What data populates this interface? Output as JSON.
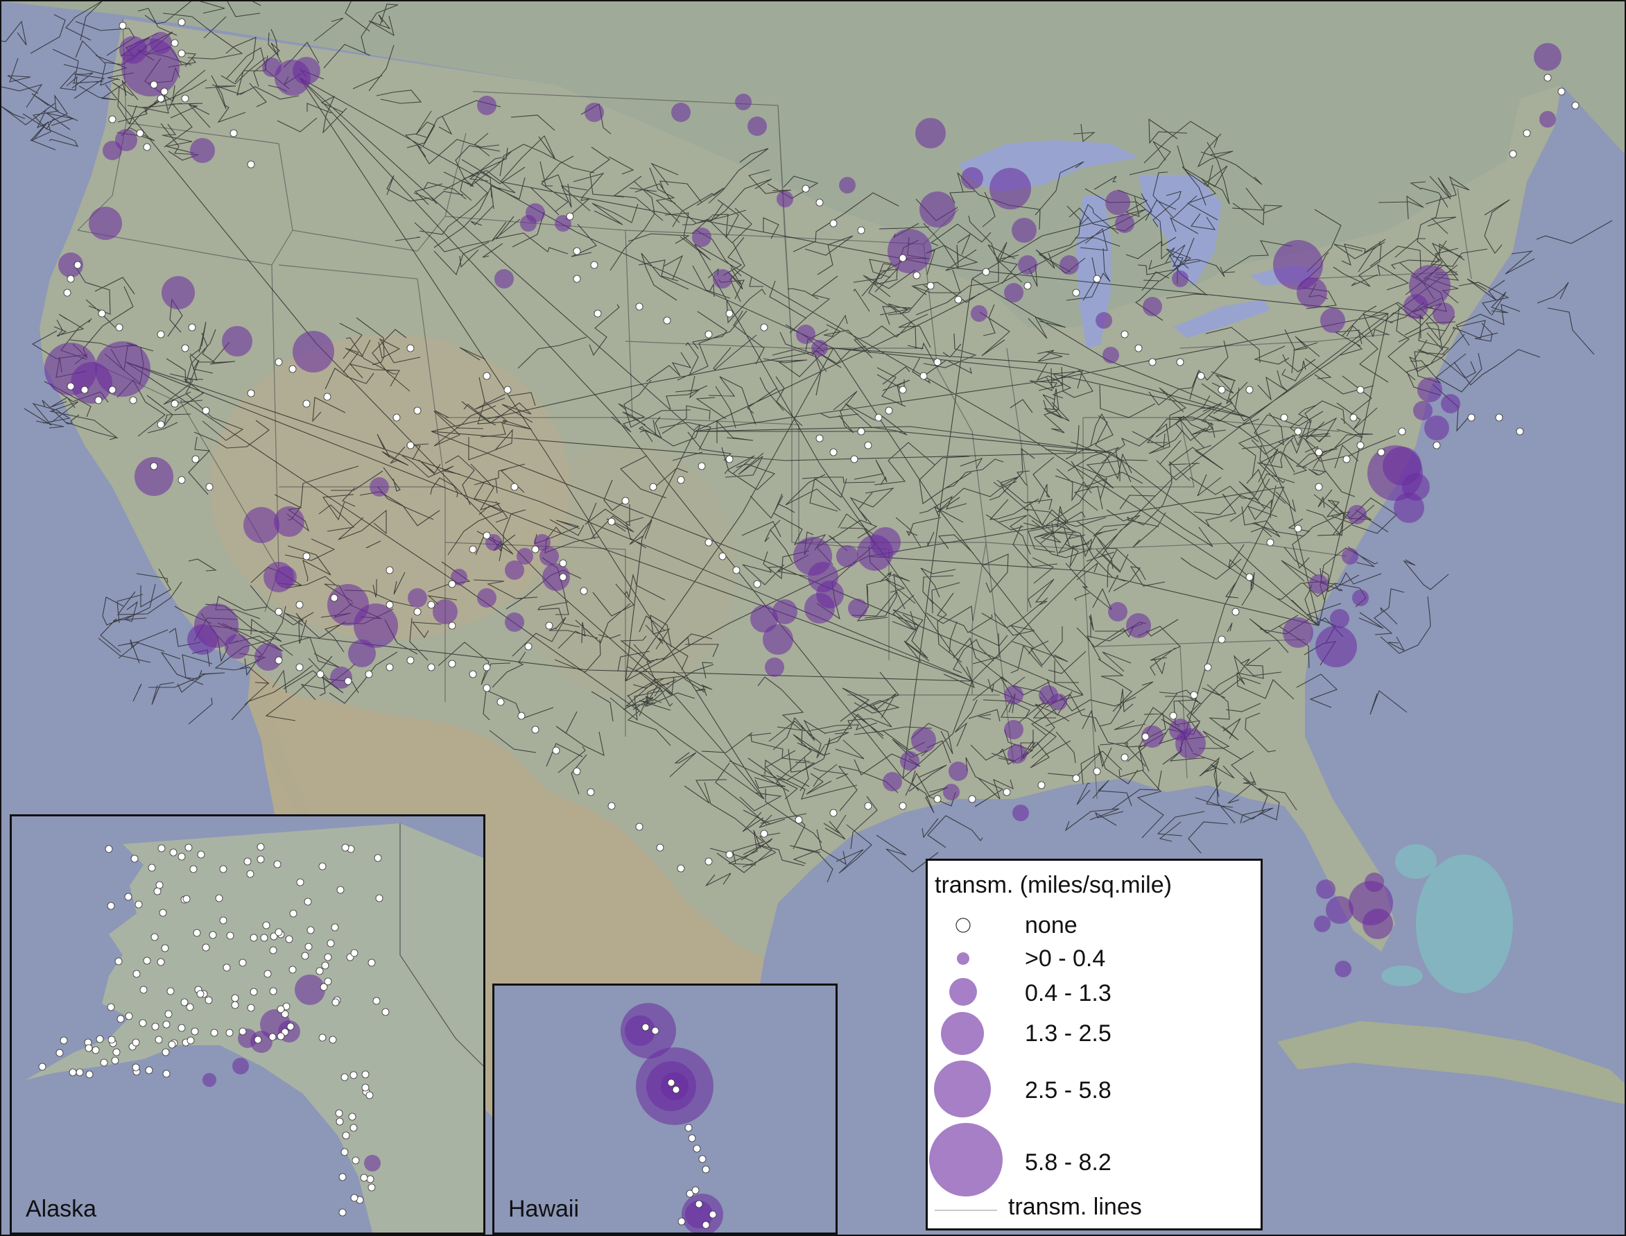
{
  "map": {
    "colors": {
      "ocean": "#8e98b8",
      "land": "#a9b09c",
      "land_dry": "#b7ad92",
      "foreign_land": "#9da996",
      "lakes": "#98a4cf",
      "transmission_lines": "#1c1c1c",
      "bubble_fill": "#6a2aa0",
      "bubble_fill_opacity": 0.55,
      "no_data_marker": "#ffffff"
    },
    "layers": [
      "base map",
      "state borders",
      "transmission lines",
      "bubbles"
    ]
  },
  "insets": [
    {
      "id": "alaska",
      "label": "Alaska"
    },
    {
      "id": "hawaii",
      "label": "Hawaii"
    }
  ],
  "legend": {
    "title": "transm. (miles/sq.mile)",
    "classes": [
      {
        "label": "none",
        "symbol": "white-circle"
      },
      {
        "label": ">0 - 0.4",
        "symbol": "purple-circle"
      },
      {
        "label": "0.4 - 1.3",
        "symbol": "purple-circle"
      },
      {
        "label": "1.3 - 2.5",
        "symbol": "purple-circle"
      },
      {
        "label": "2.5 - 5.8",
        "symbol": "purple-circle"
      },
      {
        "label": "5.8 - 8.2",
        "symbol": "purple-circle"
      }
    ],
    "lines_label": "transm.  lines"
  }
}
